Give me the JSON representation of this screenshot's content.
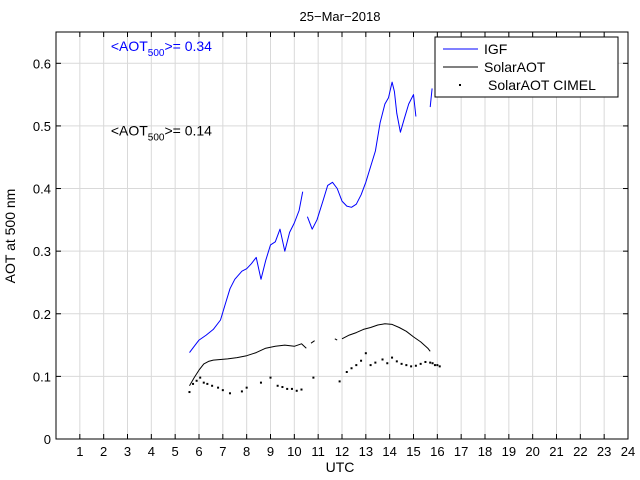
{
  "chart_data": {
    "type": "line",
    "title": "25−Mar−2018",
    "xlabel": "UTC",
    "ylabel": "AOT at 500 nm",
    "xlim": [
      0,
      24
    ],
    "ylim": [
      0,
      0.65
    ],
    "xticks": [
      0,
      1,
      2,
      3,
      4,
      5,
      6,
      7,
      8,
      9,
      10,
      11,
      12,
      13,
      14,
      15,
      16,
      17,
      18,
      19,
      20,
      21,
      22,
      23,
      24
    ],
    "xtick_labels": [
      "",
      "1",
      "2",
      "3",
      "4",
      "5",
      "6",
      "7",
      "8",
      "9",
      "10",
      "11",
      "12",
      "13",
      "14",
      "15",
      "16",
      "17",
      "18",
      "19",
      "20",
      "21",
      "22",
      "23",
      "24"
    ],
    "yticks": [
      0,
      0.1,
      0.2,
      0.3,
      0.4,
      0.5,
      0.6
    ],
    "ytick_labels": [
      "0",
      "0.1",
      "0.2",
      "0.3",
      "0.4",
      "0.5",
      "0.6"
    ],
    "grid": true,
    "legend_position": "top-right",
    "annotations": [
      {
        "prefix": "<AOT",
        "sub": "500",
        "suffix": ">= 0.34",
        "color": "#0000ff",
        "x": 2.3,
        "y": 0.62
      },
      {
        "prefix": "<AOT",
        "sub": "500",
        "suffix": ">= 0.14",
        "color": "#000000",
        "x": 2.3,
        "y": 0.485
      }
    ],
    "series": [
      {
        "name": "IGF",
        "style": "line",
        "color": "#0000ff",
        "segments": [
          [
            [
              5.6,
              0.138
            ],
            [
              5.8,
              0.148
            ],
            [
              6.0,
              0.158
            ],
            [
              6.3,
              0.166
            ],
            [
              6.6,
              0.175
            ],
            [
              6.9,
              0.19
            ],
            [
              7.1,
              0.215
            ],
            [
              7.3,
              0.24
            ],
            [
              7.5,
              0.255
            ],
            [
              7.8,
              0.268
            ],
            [
              8.0,
              0.272
            ],
            [
              8.2,
              0.28
            ],
            [
              8.4,
              0.29
            ],
            [
              8.6,
              0.255
            ],
            [
              8.8,
              0.285
            ],
            [
              9.0,
              0.31
            ],
            [
              9.2,
              0.315
            ],
            [
              9.4,
              0.335
            ],
            [
              9.6,
              0.3
            ],
            [
              9.8,
              0.33
            ],
            [
              10.0,
              0.345
            ],
            [
              10.2,
              0.365
            ],
            [
              10.35,
              0.395
            ]
          ],
          [
            [
              10.55,
              0.355
            ],
            [
              10.75,
              0.335
            ],
            [
              10.95,
              0.35
            ],
            [
              11.2,
              0.38
            ],
            [
              11.4,
              0.405
            ],
            [
              11.6,
              0.41
            ],
            [
              11.8,
              0.4
            ],
            [
              12.0,
              0.38
            ],
            [
              12.2,
              0.372
            ],
            [
              12.4,
              0.37
            ],
            [
              12.6,
              0.375
            ],
            [
              12.8,
              0.39
            ],
            [
              13.0,
              0.41
            ],
            [
              13.2,
              0.435
            ],
            [
              13.4,
              0.46
            ],
            [
              13.6,
              0.505
            ],
            [
              13.8,
              0.535
            ],
            [
              13.95,
              0.545
            ],
            [
              14.1,
              0.57
            ],
            [
              14.2,
              0.555
            ],
            [
              14.3,
              0.52
            ],
            [
              14.45,
              0.49
            ],
            [
              14.6,
              0.51
            ],
            [
              14.8,
              0.535
            ],
            [
              15.0,
              0.55
            ],
            [
              15.1,
              0.515
            ]
          ],
          [
            [
              15.7,
              0.53
            ],
            [
              15.78,
              0.56
            ]
          ]
        ]
      },
      {
        "name": "SolarAOT",
        "style": "line",
        "color": "#000000",
        "segments": [
          [
            [
              5.6,
              0.085
            ],
            [
              5.8,
              0.098
            ],
            [
              6.0,
              0.11
            ],
            [
              6.2,
              0.12
            ],
            [
              6.4,
              0.124
            ],
            [
              6.6,
              0.126
            ],
            [
              6.9,
              0.127
            ],
            [
              7.2,
              0.128
            ],
            [
              7.6,
              0.13
            ],
            [
              8.0,
              0.133
            ],
            [
              8.4,
              0.138
            ],
            [
              8.8,
              0.145
            ],
            [
              9.2,
              0.148
            ],
            [
              9.6,
              0.15
            ],
            [
              10.0,
              0.148
            ],
            [
              10.3,
              0.152
            ],
            [
              10.5,
              0.145
            ]
          ],
          [
            [
              10.7,
              0.153
            ],
            [
              10.85,
              0.157
            ]
          ],
          [
            [
              11.7,
              0.16
            ],
            [
              11.8,
              0.158
            ]
          ],
          [
            [
              12.0,
              0.16
            ],
            [
              12.3,
              0.166
            ],
            [
              12.6,
              0.17
            ],
            [
              12.9,
              0.175
            ],
            [
              13.2,
              0.178
            ],
            [
              13.5,
              0.182
            ],
            [
              13.8,
              0.184
            ],
            [
              14.1,
              0.183
            ],
            [
              14.4,
              0.178
            ],
            [
              14.7,
              0.172
            ],
            [
              15.0,
              0.163
            ],
            [
              15.3,
              0.155
            ],
            [
              15.6,
              0.145
            ],
            [
              15.7,
              0.14
            ]
          ]
        ]
      },
      {
        "name": "SolarAOT CIMEL",
        "style": "points",
        "color": "#000000",
        "points": [
          [
            5.6,
            0.075
          ],
          [
            5.75,
            0.088
          ],
          [
            5.9,
            0.093
          ],
          [
            6.05,
            0.098
          ],
          [
            6.2,
            0.09
          ],
          [
            6.35,
            0.088
          ],
          [
            6.55,
            0.085
          ],
          [
            6.8,
            0.082
          ],
          [
            7.0,
            0.078
          ],
          [
            7.3,
            0.073
          ],
          [
            7.8,
            0.076
          ],
          [
            8.0,
            0.082
          ],
          [
            8.6,
            0.09
          ],
          [
            9.0,
            0.098
          ],
          [
            9.3,
            0.085
          ],
          [
            9.5,
            0.083
          ],
          [
            9.7,
            0.08
          ],
          [
            9.9,
            0.08
          ],
          [
            10.1,
            0.077
          ],
          [
            10.3,
            0.079
          ],
          [
            10.8,
            0.098
          ],
          [
            11.9,
            0.092
          ],
          [
            12.2,
            0.107
          ],
          [
            12.4,
            0.113
          ],
          [
            12.6,
            0.118
          ],
          [
            12.8,
            0.125
          ],
          [
            13.0,
            0.137
          ],
          [
            13.2,
            0.118
          ],
          [
            13.4,
            0.122
          ],
          [
            13.7,
            0.127
          ],
          [
            13.9,
            0.121
          ],
          [
            14.1,
            0.13
          ],
          [
            14.3,
            0.124
          ],
          [
            14.5,
            0.12
          ],
          [
            14.7,
            0.118
          ],
          [
            14.9,
            0.116
          ],
          [
            15.1,
            0.117
          ],
          [
            15.3,
            0.12
          ],
          [
            15.5,
            0.123
          ],
          [
            15.7,
            0.122
          ],
          [
            15.8,
            0.121
          ],
          [
            15.9,
            0.118
          ],
          [
            16.0,
            0.118
          ],
          [
            16.1,
            0.116
          ]
        ]
      }
    ]
  }
}
